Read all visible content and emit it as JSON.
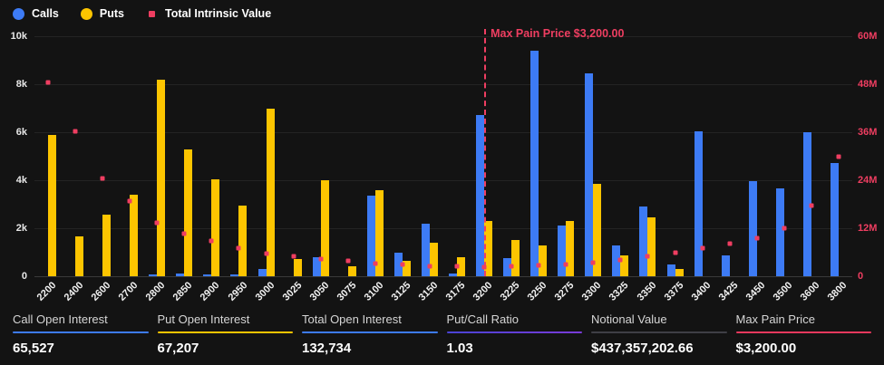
{
  "legend": {
    "items": [
      {
        "label": "Calls",
        "color": "#3d7bf5",
        "marker": "circle"
      },
      {
        "label": "Puts",
        "color": "#fdc500",
        "marker": "circle"
      },
      {
        "label": "Total Intrinsic Value",
        "color": "#ef3e61",
        "marker": "square"
      }
    ]
  },
  "chart_data": {
    "type": "bar",
    "title": "",
    "categories": [
      "2200",
      "2400",
      "2600",
      "2700",
      "2800",
      "2850",
      "2900",
      "2950",
      "3000",
      "3025",
      "3050",
      "3075",
      "3100",
      "3125",
      "3150",
      "3175",
      "3200",
      "3225",
      "3250",
      "3275",
      "3300",
      "3325",
      "3350",
      "3375",
      "3400",
      "3425",
      "3450",
      "3500",
      "3600",
      "3800"
    ],
    "series": [
      {
        "name": "Calls",
        "type": "bar",
        "color": "#3d7bf5",
        "axis": "left",
        "values": [
          0,
          0,
          0,
          0,
          70,
          100,
          80,
          80,
          300,
          0,
          800,
          0,
          3350,
          1000,
          2200,
          100,
          6700,
          750,
          9400,
          2100,
          8450,
          1300,
          2900,
          500,
          6050,
          850,
          3950,
          3650,
          6000,
          4700
        ]
      },
      {
        "name": "Puts",
        "type": "bar",
        "color": "#fdc500",
        "axis": "left",
        "values": [
          5900,
          1650,
          2550,
          3400,
          8200,
          5300,
          4050,
          2950,
          7000,
          700,
          4000,
          400,
          3600,
          650,
          1400,
          800,
          2300,
          1500,
          1300,
          2300,
          3850,
          850,
          2450,
          300,
          0,
          0,
          0,
          0,
          0,
          0
        ]
      },
      {
        "name": "Total Intrinsic Value",
        "type": "scatter",
        "color": "#ef3e61",
        "axis": "right",
        "values_millions": [
          48.5,
          36.2,
          24.5,
          18.9,
          13.3,
          10.7,
          8.9,
          7.1,
          5.6,
          5.0,
          4.3,
          3.9,
          3.1,
          3.0,
          2.5,
          2.4,
          2.3,
          2.5,
          2.8,
          2.9,
          3.3,
          4.0,
          4.9,
          5.9,
          7.0,
          8.2,
          9.5,
          12.0,
          17.6,
          29.8
        ]
      }
    ],
    "left_axis": {
      "ticks": [
        "10k",
        "8k",
        "6k",
        "4k",
        "2k",
        "0"
      ],
      "max": 10000,
      "color": "#e8e8e8"
    },
    "right_axis": {
      "ticks": [
        "60M",
        "48M",
        "36M",
        "24M",
        "12M",
        "0"
      ],
      "max": 60000000,
      "color": "#ef3e61"
    },
    "annotation": {
      "label": "Max Pain Price $3,200.00",
      "strike": "3200",
      "color": "#ef3e61"
    },
    "grid": true,
    "legend_position": "top-left",
    "xlabel": "",
    "ylabel": ""
  },
  "stats": [
    {
      "label": "Call Open Interest",
      "value": "65,527",
      "accent": "#3d7bf5",
      "accent_type": "solid"
    },
    {
      "label": "Put Open Interest",
      "value": "67,207",
      "accent": "#fdc500",
      "accent_type": "solid"
    },
    {
      "label": "Total Open Interest",
      "value": "132,734",
      "accent": "#3d7bf5",
      "accent_type": "solid"
    },
    {
      "label": "Put/Call Ratio",
      "value": "1.03",
      "accent": "#4a43d6",
      "accent2": "#7a3bd8",
      "accent_type": "gradient"
    },
    {
      "label": "Notional Value",
      "value": "$437,357,202.66",
      "accent": "#3f3f46",
      "accent_type": "solid"
    },
    {
      "label": "Max Pain Price",
      "value": "$3,200.00",
      "accent": "#e8385d",
      "accent_type": "solid"
    }
  ],
  "colors": {
    "background": "#131313",
    "gridline": "#242424",
    "axis_line": "#3a3a3a",
    "calls_blue": "#3d7bf5",
    "puts_yellow": "#fdc500",
    "intrinsic_crimson": "#ef3e61"
  }
}
